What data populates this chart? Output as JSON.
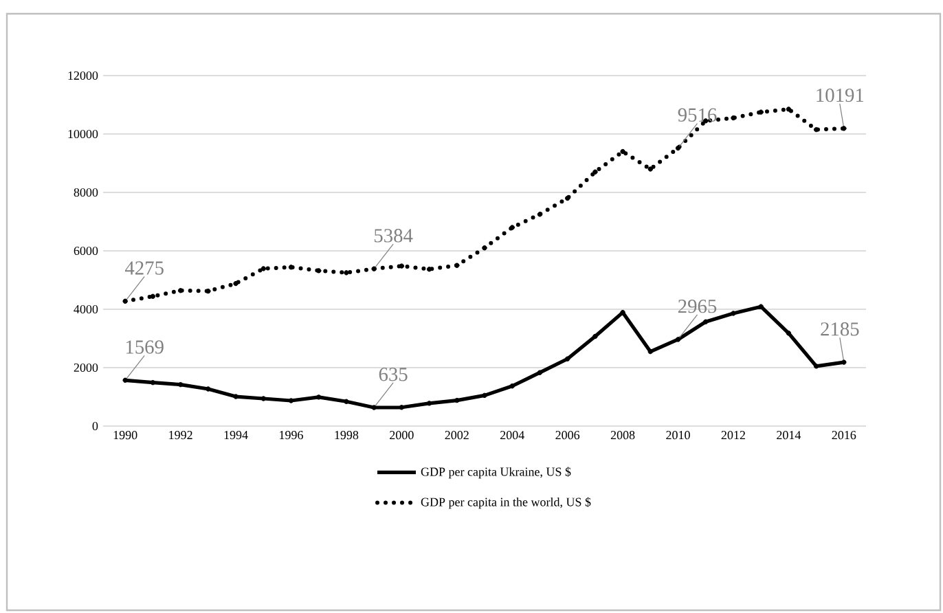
{
  "chart_data": {
    "type": "line",
    "x": [
      1990,
      1991,
      1992,
      1993,
      1994,
      1995,
      1996,
      1997,
      1998,
      1999,
      2000,
      2001,
      2002,
      2003,
      2004,
      2005,
      2006,
      2007,
      2008,
      2009,
      2010,
      2011,
      2012,
      2013,
      2014,
      2015,
      2016
    ],
    "series": [
      {
        "name": "GDP per capita Ukraine, US $",
        "color": "#000000",
        "line_style": "solid",
        "marker": "circle",
        "values": [
          1569,
          1490,
          1420,
          1270,
          1010,
          940,
          870,
          990,
          840,
          635,
          640,
          780,
          880,
          1050,
          1370,
          1830,
          2300,
          3070,
          3890,
          2550,
          2965,
          3570,
          3860,
          4090,
          3180,
          2050,
          2185
        ]
      },
      {
        "name": "GDP per capita in the world, US $",
        "color": "#000000",
        "line_style": "dotted",
        "marker": "circle",
        "values": [
          4275,
          4440,
          4640,
          4620,
          4880,
          5390,
          5440,
          5320,
          5250,
          5384,
          5480,
          5370,
          5500,
          6100,
          6800,
          7250,
          7800,
          8700,
          9400,
          8800,
          9516,
          10450,
          10550,
          10750,
          10850,
          10150,
          10191
        ]
      }
    ],
    "xlim": [
      1989.2,
      2016.8
    ],
    "ylim": [
      0,
      12000
    ],
    "xticks": [
      1990,
      1992,
      1994,
      1996,
      1998,
      2000,
      2002,
      2004,
      2006,
      2008,
      2010,
      2012,
      2014,
      2016
    ],
    "yticks": [
      0,
      2000,
      4000,
      6000,
      8000,
      10000,
      12000
    ],
    "grid": "y",
    "legend": "bottom",
    "annotations": [
      {
        "text": "1569",
        "x": 1990,
        "y": 1569
      },
      {
        "text": "635",
        "x": 1999,
        "y": 635
      },
      {
        "text": "2965",
        "x": 2010,
        "y": 2965
      },
      {
        "text": "2185",
        "x": 2016,
        "y": 2185
      },
      {
        "text": "4275",
        "x": 1990,
        "y": 4275
      },
      {
        "text": "5384",
        "x": 1999,
        "y": 5384
      },
      {
        "text": "9516",
        "x": 2010,
        "y": 9516
      },
      {
        "text": "10191",
        "x": 2016,
        "y": 10191
      }
    ]
  }
}
